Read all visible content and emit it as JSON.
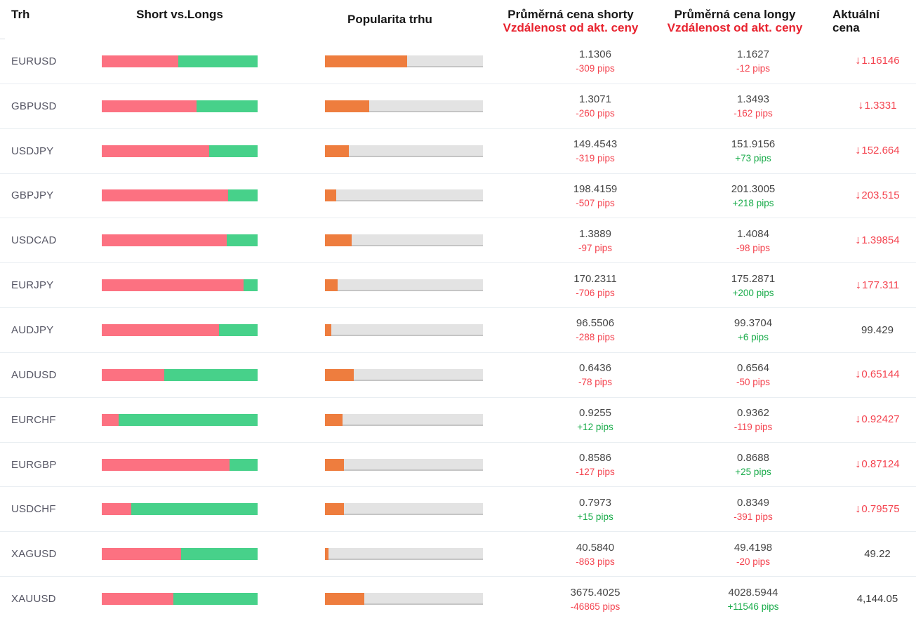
{
  "header": {
    "market": "Trh",
    "sentiment": "Short vs.Longs",
    "popularity": "Popularita trhu",
    "short_price_title": "Průměrná cena shorty",
    "short_price_sub": "Vzdálenost od akt. ceny",
    "long_price_title": "Průměrná cena longy",
    "long_price_sub": "Vzdálenost od akt. ceny",
    "current_line1": "Aktuální",
    "current_line2": "cena"
  },
  "colors": {
    "short_bar": "#fc7181",
    "long_bar": "#47d18a",
    "popularity_bar": "#ee7d3e",
    "popularity_track": "#e3e3e3",
    "negative_text": "#f4434f",
    "positive_text": "#18ab49",
    "header_red": "#e8232f",
    "divider": "#e9eef2"
  },
  "rows": [
    {
      "market": "EURUSD",
      "short_pct": 49,
      "popularity_pct": 52,
      "short_price": "1.1306",
      "short_dist": "-309 pips",
      "long_price": "1.1627",
      "long_dist": "-12 pips",
      "current": "1.16146",
      "current_down": true
    },
    {
      "market": "GBPUSD",
      "short_pct": 61,
      "popularity_pct": 28,
      "short_price": "1.3071",
      "short_dist": "-260 pips",
      "long_price": "1.3493",
      "long_dist": "-162 pips",
      "current": "1.3331",
      "current_down": true
    },
    {
      "market": "USDJPY",
      "short_pct": 69,
      "popularity_pct": 15,
      "short_price": "149.4543",
      "short_dist": "-319 pips",
      "long_price": "151.9156",
      "long_dist": "+73 pips",
      "current": "152.664",
      "current_down": true
    },
    {
      "market": "GBPJPY",
      "short_pct": 81,
      "popularity_pct": 7,
      "short_price": "198.4159",
      "short_dist": "-507 pips",
      "long_price": "201.3005",
      "long_dist": "+218 pips",
      "current": "203.515",
      "current_down": true
    },
    {
      "market": "USDCAD",
      "short_pct": 80,
      "popularity_pct": 17,
      "short_price": "1.3889",
      "short_dist": "-97 pips",
      "long_price": "1.4084",
      "long_dist": "-98 pips",
      "current": "1.39854",
      "current_down": true
    },
    {
      "market": "EURJPY",
      "short_pct": 91,
      "popularity_pct": 8,
      "short_price": "170.2311",
      "short_dist": "-706 pips",
      "long_price": "175.2871",
      "long_dist": "+200 pips",
      "current": "177.311",
      "current_down": true
    },
    {
      "market": "AUDJPY",
      "short_pct": 75,
      "popularity_pct": 4,
      "short_price": "96.5506",
      "short_dist": "-288 pips",
      "long_price": "99.3704",
      "long_dist": "+6 pips",
      "current": "99.429",
      "current_down": false
    },
    {
      "market": "AUDUSD",
      "short_pct": 40,
      "popularity_pct": 18,
      "short_price": "0.6436",
      "short_dist": "-78 pips",
      "long_price": "0.6564",
      "long_dist": "-50 pips",
      "current": "0.65144",
      "current_down": true
    },
    {
      "market": "EURCHF",
      "short_pct": 11,
      "popularity_pct": 11,
      "short_price": "0.9255",
      "short_dist": "+12 pips",
      "long_price": "0.9362",
      "long_dist": "-119 pips",
      "current": "0.92427",
      "current_down": true
    },
    {
      "market": "EURGBP",
      "short_pct": 82,
      "popularity_pct": 12,
      "short_price": "0.8586",
      "short_dist": "-127 pips",
      "long_price": "0.8688",
      "long_dist": "+25 pips",
      "current": "0.87124",
      "current_down": true
    },
    {
      "market": "USDCHF",
      "short_pct": 19,
      "popularity_pct": 12,
      "short_price": "0.7973",
      "short_dist": "+15 pips",
      "long_price": "0.8349",
      "long_dist": "-391 pips",
      "current": "0.79575",
      "current_down": true
    },
    {
      "market": "XAGUSD",
      "short_pct": 51,
      "popularity_pct": 2,
      "short_price": "40.5840",
      "short_dist": "-863 pips",
      "long_price": "49.4198",
      "long_dist": "-20 pips",
      "current": "49.22",
      "current_down": false
    },
    {
      "market": "XAUUSD",
      "short_pct": 46,
      "popularity_pct": 25,
      "short_price": "3675.4025",
      "short_dist": "-46865 pips",
      "long_price": "4028.5944",
      "long_dist": "+11546 pips",
      "current": "4,144.05",
      "current_down": false
    }
  ]
}
